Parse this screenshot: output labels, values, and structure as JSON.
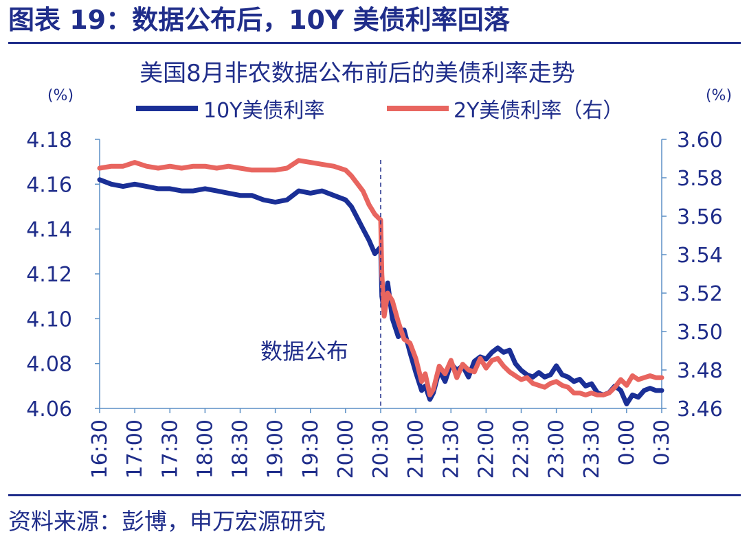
{
  "figure": {
    "title": "图表 19：数据公布后，10Y 美债利率回落",
    "source": "资料来源：彭博，申万宏源研究"
  },
  "colors": {
    "brand": "#1f2d8a",
    "series_10y": "#1a2f96",
    "series_2y": "#e8655f",
    "axis": "#5b8fc5"
  },
  "chart_data": {
    "type": "line",
    "title": "美国8月非农数据公布前后的美债利率走势",
    "left_unit": "(%)",
    "right_unit": "(%)",
    "x_ticks": [
      "16:30",
      "17:00",
      "17:30",
      "18:00",
      "18:30",
      "19:00",
      "19:30",
      "20:00",
      "20:30",
      "21:00",
      "21:30",
      "22:00",
      "22:30",
      "23:00",
      "23:30",
      "0:00",
      "0:30"
    ],
    "y_left": {
      "range": [
        4.06,
        4.18
      ],
      "ticks": [
        "4.18",
        "4.16",
        "4.14",
        "4.12",
        "4.10",
        "4.08",
        "4.06"
      ]
    },
    "y_right": {
      "range": [
        3.46,
        3.6
      ],
      "ticks": [
        "3.60",
        "3.58",
        "3.56",
        "3.54",
        "3.52",
        "3.50",
        "3.48",
        "3.46"
      ]
    },
    "event_marker": {
      "x": "20:30",
      "label": "数据公布"
    },
    "grid": false,
    "legend_position": "top",
    "series": [
      {
        "name": "10Y美债利率",
        "axis": "left",
        "points": [
          [
            "16:30",
            4.162
          ],
          [
            "16:40",
            4.16
          ],
          [
            "16:50",
            4.159
          ],
          [
            "17:00",
            4.16
          ],
          [
            "17:10",
            4.159
          ],
          [
            "17:20",
            4.158
          ],
          [
            "17:30",
            4.158
          ],
          [
            "17:40",
            4.157
          ],
          [
            "17:50",
            4.157
          ],
          [
            "18:00",
            4.158
          ],
          [
            "18:10",
            4.157
          ],
          [
            "18:20",
            4.156
          ],
          [
            "18:30",
            4.155
          ],
          [
            "18:40",
            4.155
          ],
          [
            "18:50",
            4.153
          ],
          [
            "19:00",
            4.152
          ],
          [
            "19:10",
            4.153
          ],
          [
            "19:20",
            4.157
          ],
          [
            "19:30",
            4.156
          ],
          [
            "19:40",
            4.157
          ],
          [
            "19:50",
            4.155
          ],
          [
            "20:00",
            4.153
          ],
          [
            "20:05",
            4.15
          ],
          [
            "20:10",
            4.145
          ],
          [
            "20:15",
            4.14
          ],
          [
            "20:20",
            4.135
          ],
          [
            "20:25",
            4.129
          ],
          [
            "20:30",
            4.132
          ],
          [
            "20:31",
            4.11
          ],
          [
            "20:33",
            4.103
          ],
          [
            "20:36",
            4.116
          ],
          [
            "20:40",
            4.1
          ],
          [
            "20:45",
            4.092
          ],
          [
            "20:50",
            4.095
          ],
          [
            "20:55",
            4.085
          ],
          [
            "21:00",
            4.076
          ],
          [
            "21:05",
            4.068
          ],
          [
            "21:08",
            4.07
          ],
          [
            "21:12",
            4.064
          ],
          [
            "21:15",
            4.067
          ],
          [
            "21:20",
            4.077
          ],
          [
            "21:25",
            4.072
          ],
          [
            "21:30",
            4.08
          ],
          [
            "21:35",
            4.077
          ],
          [
            "21:40",
            4.079
          ],
          [
            "21:45",
            4.074
          ],
          [
            "21:50",
            4.081
          ],
          [
            "21:55",
            4.083
          ],
          [
            "22:00",
            4.082
          ],
          [
            "22:05",
            4.085
          ],
          [
            "22:10",
            4.087
          ],
          [
            "22:15",
            4.085
          ],
          [
            "22:20",
            4.086
          ],
          [
            "22:25",
            4.08
          ],
          [
            "22:30",
            4.077
          ],
          [
            "22:35",
            4.075
          ],
          [
            "22:40",
            4.074
          ],
          [
            "22:45",
            4.076
          ],
          [
            "22:50",
            4.074
          ],
          [
            "22:55",
            4.075
          ],
          [
            "23:00",
            4.079
          ],
          [
            "23:05",
            4.075
          ],
          [
            "23:10",
            4.074
          ],
          [
            "23:15",
            4.072
          ],
          [
            "23:20",
            4.073
          ],
          [
            "23:25",
            4.07
          ],
          [
            "23:30",
            4.071
          ],
          [
            "23:35",
            4.067
          ],
          [
            "23:40",
            4.066
          ],
          [
            "23:45",
            4.067
          ],
          [
            "23:50",
            4.07
          ],
          [
            "23:55",
            4.068
          ],
          [
            "0:00",
            4.062
          ],
          [
            "0:05",
            4.066
          ],
          [
            "0:10",
            4.065
          ],
          [
            "0:15",
            4.068
          ],
          [
            "0:20",
            4.069
          ],
          [
            "0:25",
            4.068
          ],
          [
            "0:30",
            4.068
          ]
        ]
      },
      {
        "name": "2Y美债利率（右）",
        "axis": "right",
        "points": [
          [
            "16:30",
            3.585
          ],
          [
            "16:40",
            3.586
          ],
          [
            "16:50",
            3.586
          ],
          [
            "17:00",
            3.588
          ],
          [
            "17:10",
            3.586
          ],
          [
            "17:20",
            3.585
          ],
          [
            "17:30",
            3.586
          ],
          [
            "17:40",
            3.585
          ],
          [
            "17:50",
            3.586
          ],
          [
            "18:00",
            3.586
          ],
          [
            "18:10",
            3.585
          ],
          [
            "18:20",
            3.586
          ],
          [
            "18:30",
            3.585
          ],
          [
            "18:40",
            3.584
          ],
          [
            "18:50",
            3.584
          ],
          [
            "19:00",
            3.584
          ],
          [
            "19:10",
            3.585
          ],
          [
            "19:20",
            3.589
          ],
          [
            "19:30",
            3.588
          ],
          [
            "19:40",
            3.587
          ],
          [
            "19:50",
            3.586
          ],
          [
            "20:00",
            3.584
          ],
          [
            "20:05",
            3.581
          ],
          [
            "20:10",
            3.577
          ],
          [
            "20:15",
            3.573
          ],
          [
            "20:20",
            3.566
          ],
          [
            "20:25",
            3.561
          ],
          [
            "20:30",
            3.558
          ],
          [
            "20:31",
            3.53
          ],
          [
            "20:33",
            3.508
          ],
          [
            "20:36",
            3.52
          ],
          [
            "20:40",
            3.516
          ],
          [
            "20:45",
            3.505
          ],
          [
            "20:50",
            3.496
          ],
          [
            "20:55",
            3.494
          ],
          [
            "21:00",
            3.486
          ],
          [
            "21:05",
            3.474
          ],
          [
            "21:08",
            3.478
          ],
          [
            "21:12",
            3.467
          ],
          [
            "21:15",
            3.47
          ],
          [
            "21:20",
            3.482
          ],
          [
            "21:25",
            3.478
          ],
          [
            "21:30",
            3.485
          ],
          [
            "21:35",
            3.476
          ],
          [
            "21:40",
            3.483
          ],
          [
            "21:45",
            3.48
          ],
          [
            "21:50",
            3.479
          ],
          [
            "21:55",
            3.486
          ],
          [
            "22:00",
            3.481
          ],
          [
            "22:05",
            3.485
          ],
          [
            "22:10",
            3.486
          ],
          [
            "22:15",
            3.482
          ],
          [
            "22:20",
            3.479
          ],
          [
            "22:25",
            3.477
          ],
          [
            "22:30",
            3.475
          ],
          [
            "22:35",
            3.476
          ],
          [
            "22:40",
            3.473
          ],
          [
            "22:45",
            3.472
          ],
          [
            "22:50",
            3.471
          ],
          [
            "22:55",
            3.473
          ],
          [
            "23:00",
            3.474
          ],
          [
            "23:05",
            3.472
          ],
          [
            "23:10",
            3.471
          ],
          [
            "23:15",
            3.468
          ],
          [
            "23:20",
            3.468
          ],
          [
            "23:25",
            3.467
          ],
          [
            "23:30",
            3.468
          ],
          [
            "23:35",
            3.467
          ],
          [
            "23:40",
            3.467
          ],
          [
            "23:45",
            3.468
          ],
          [
            "23:50",
            3.471
          ],
          [
            "23:55",
            3.475
          ],
          [
            "0:00",
            3.472
          ],
          [
            "0:05",
            3.477
          ],
          [
            "0:10",
            3.475
          ],
          [
            "0:15",
            3.476
          ],
          [
            "0:20",
            3.477
          ],
          [
            "0:25",
            3.476
          ],
          [
            "0:30",
            3.476
          ]
        ]
      }
    ]
  }
}
